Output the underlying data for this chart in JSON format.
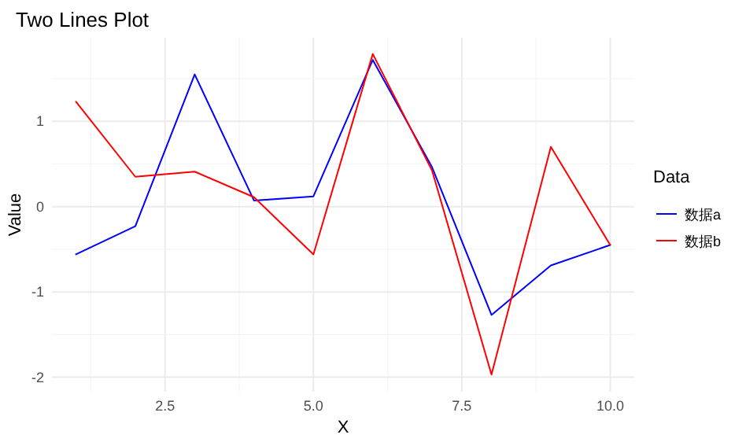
{
  "chart_data": {
    "type": "line",
    "title": "Two Lines Plot",
    "xlabel": "X",
    "ylabel": "Value",
    "legend_title": "Data",
    "legend": "right",
    "grid": true,
    "x": [
      1,
      2,
      3,
      4,
      5,
      6,
      7,
      8,
      9,
      10
    ],
    "series": [
      {
        "name": "数据a",
        "color": "#0000ff",
        "values": [
          -0.56,
          -0.23,
          1.55,
          0.07,
          0.12,
          1.72,
          0.46,
          -1.27,
          -0.69,
          -0.45
        ]
      },
      {
        "name": "数据b",
        "color": "#ff0000",
        "values": [
          1.23,
          0.35,
          0.41,
          0.11,
          -0.56,
          1.79,
          0.42,
          -1.97,
          0.7,
          -0.45
        ]
      }
    ],
    "xlim": [
      0.595,
      10.405
    ],
    "xticks": [
      {
        "value": 1.25,
        "label": null
      },
      2.5,
      {
        "value": 3.75,
        "label": null
      },
      {
        "value": 5,
        "label": "5.0"
      },
      {
        "value": 6.25,
        "label": null
      },
      7.5,
      {
        "value": 8.75,
        "label": null
      },
      {
        "value": 10,
        "label": "10.0"
      }
    ],
    "ylim": [
      -2.17,
      1.98
    ],
    "yticks": [
      {
        "value": -2,
        "label": "-2"
      },
      {
        "value": -1.5,
        "label": null
      },
      {
        "value": -1,
        "label": "-1"
      },
      {
        "value": -0.5,
        "label": null
      },
      0,
      {
        "value": 0.5,
        "label": null
      },
      1,
      {
        "value": 1.5,
        "label": null
      }
    ]
  }
}
